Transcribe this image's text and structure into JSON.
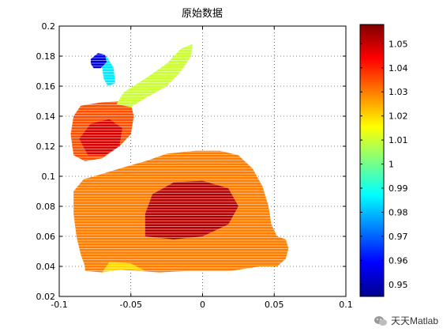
{
  "chart_data": {
    "type": "scatter",
    "title": "原始数据",
    "xlabel": "",
    "ylabel": "",
    "xlim": [
      -0.1,
      0.1
    ],
    "ylim": [
      0.02,
      0.2
    ],
    "xticks": [
      "-0.1",
      "-0.05",
      "0",
      "0.05",
      "0.1"
    ],
    "xtick_values": [
      -0.1,
      -0.05,
      0,
      0.05,
      0.1
    ],
    "yticks": [
      "0.02",
      "0.04",
      "0.06",
      "0.08",
      "0.1",
      "0.12",
      "0.14",
      "0.16",
      "0.18",
      "0.2"
    ],
    "ytick_values": [
      0.02,
      0.04,
      0.06,
      0.08,
      0.1,
      0.12,
      0.14,
      0.16,
      0.18,
      0.2
    ],
    "grid": true,
    "colormap": "jet",
    "colorbar": {
      "range": [
        0.945,
        1.058
      ],
      "ticks": [
        "0.95",
        "0.96",
        "0.97",
        "0.98",
        "0.99",
        "1",
        "1.01",
        "1.02",
        "1.03",
        "1.04",
        "1.05"
      ],
      "tick_values": [
        0.95,
        0.96,
        0.97,
        0.98,
        0.99,
        1.0,
        1.01,
        1.02,
        1.03,
        1.04,
        1.05
      ]
    },
    "regions": [
      {
        "part": "body",
        "outline": [
          [
            -0.082,
            0.037
          ],
          [
            -0.07,
            0.036
          ],
          [
            -0.06,
            0.038
          ],
          [
            -0.045,
            0.037
          ],
          [
            -0.03,
            0.036
          ],
          [
            -0.01,
            0.037
          ],
          [
            0.02,
            0.037
          ],
          [
            0.04,
            0.04
          ],
          [
            0.052,
            0.04
          ],
          [
            0.058,
            0.045
          ],
          [
            0.06,
            0.052
          ],
          [
            0.058,
            0.058
          ],
          [
            0.052,
            0.06
          ],
          [
            0.048,
            0.068
          ],
          [
            0.046,
            0.08
          ],
          [
            0.042,
            0.093
          ],
          [
            0.035,
            0.105
          ],
          [
            0.025,
            0.114
          ],
          [
            0.012,
            0.117
          ],
          [
            -0.005,
            0.117
          ],
          [
            -0.025,
            0.115
          ],
          [
            -0.04,
            0.11
          ],
          [
            -0.055,
            0.106
          ],
          [
            -0.072,
            0.101
          ],
          [
            -0.083,
            0.098
          ],
          [
            -0.09,
            0.09
          ],
          [
            -0.09,
            0.075
          ],
          [
            -0.088,
            0.06
          ],
          [
            -0.085,
            0.048
          ],
          [
            -0.082,
            0.04
          ]
        ],
        "value": 1.03
      },
      {
        "part": "head",
        "outline": [
          [
            -0.092,
            0.128
          ],
          [
            -0.09,
            0.14
          ],
          [
            -0.085,
            0.147
          ],
          [
            -0.072,
            0.149
          ],
          [
            -0.058,
            0.15
          ],
          [
            -0.05,
            0.148
          ],
          [
            -0.048,
            0.14
          ],
          [
            -0.05,
            0.128
          ],
          [
            -0.058,
            0.12
          ],
          [
            -0.07,
            0.112
          ],
          [
            -0.082,
            0.11
          ],
          [
            -0.09,
            0.114
          ]
        ],
        "value": 1.035
      },
      {
        "part": "ear-right",
        "outline": [
          [
            -0.06,
            0.148
          ],
          [
            -0.055,
            0.156
          ],
          [
            -0.04,
            0.165
          ],
          [
            -0.025,
            0.175
          ],
          [
            -0.015,
            0.185
          ],
          [
            -0.007,
            0.188
          ],
          [
            -0.008,
            0.18
          ],
          [
            -0.015,
            0.17
          ],
          [
            -0.025,
            0.16
          ],
          [
            -0.04,
            0.152
          ],
          [
            -0.05,
            0.146
          ]
        ],
        "value": 1.01
      },
      {
        "part": "ear-left",
        "outline": [
          [
            -0.072,
            0.18
          ],
          [
            -0.07,
            0.172
          ],
          [
            -0.069,
            0.165
          ],
          [
            -0.066,
            0.16
          ],
          [
            -0.061,
            0.162
          ],
          [
            -0.062,
            0.172
          ],
          [
            -0.067,
            0.18
          ]
        ],
        "value": 0.985
      },
      {
        "part": "ear-tip",
        "outline": [
          [
            -0.078,
            0.178
          ],
          [
            -0.073,
            0.182
          ],
          [
            -0.068,
            0.181
          ],
          [
            -0.067,
            0.176
          ],
          [
            -0.071,
            0.172
          ],
          [
            -0.076,
            0.172
          ],
          [
            -0.078,
            0.175
          ]
        ],
        "value": 0.955
      },
      {
        "part": "core",
        "outline": [
          [
            -0.04,
            0.06
          ],
          [
            -0.02,
            0.058
          ],
          [
            0.0,
            0.06
          ],
          [
            0.018,
            0.068
          ],
          [
            0.025,
            0.08
          ],
          [
            0.018,
            0.092
          ],
          [
            0.0,
            0.097
          ],
          [
            -0.02,
            0.096
          ],
          [
            -0.035,
            0.088
          ],
          [
            -0.04,
            0.075
          ]
        ],
        "value": 1.052
      },
      {
        "part": "head-core",
        "outline": [
          [
            -0.086,
            0.125
          ],
          [
            -0.078,
            0.135
          ],
          [
            -0.065,
            0.138
          ],
          [
            -0.056,
            0.132
          ],
          [
            -0.058,
            0.12
          ],
          [
            -0.068,
            0.114
          ],
          [
            -0.08,
            0.114
          ]
        ],
        "value": 1.048
      },
      {
        "part": "feet",
        "outline": [
          [
            -0.07,
            0.036
          ],
          [
            -0.055,
            0.038
          ],
          [
            -0.04,
            0.037
          ],
          [
            -0.05,
            0.042
          ],
          [
            -0.065,
            0.043
          ]
        ],
        "value": 1.02
      }
    ]
  },
  "watermark": {
    "text": "天天Matlab",
    "icon": "wechat-icon"
  }
}
